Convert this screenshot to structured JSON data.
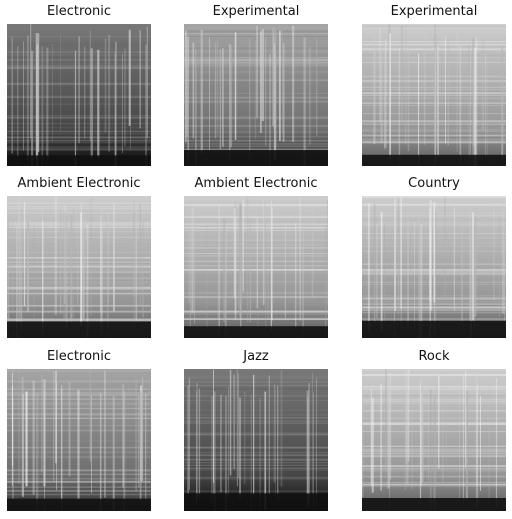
{
  "figure": {
    "panels": [
      {
        "label": "Electronic",
        "tone": "dark"
      },
      {
        "label": "Experimental",
        "tone": "mid"
      },
      {
        "label": "Experimental",
        "tone": "light"
      },
      {
        "label": "Ambient Electronic",
        "tone": "light"
      },
      {
        "label": "Ambient Electronic",
        "tone": "light"
      },
      {
        "label": "Country",
        "tone": "light"
      },
      {
        "label": "Electronic",
        "tone": "mid"
      },
      {
        "label": "Jazz",
        "tone": "dark"
      },
      {
        "label": "Rock",
        "tone": "light"
      }
    ]
  }
}
